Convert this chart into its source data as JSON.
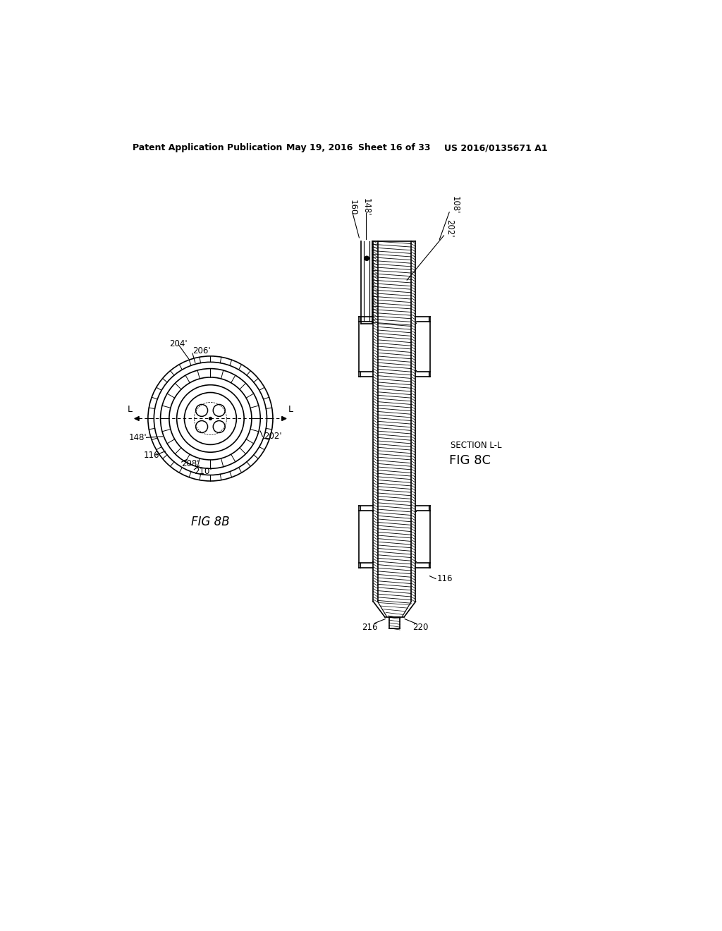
{
  "bg_color": "#ffffff",
  "header_text": "Patent Application Publication",
  "header_date": "May 19, 2016",
  "header_sheet": "Sheet 16 of 33",
  "header_patent": "US 2016/0135671 A1",
  "fig8b_label": "FIG 8B",
  "fig8c_label_1": "SECTION L-L",
  "fig8c_label_2": "FIG 8C"
}
